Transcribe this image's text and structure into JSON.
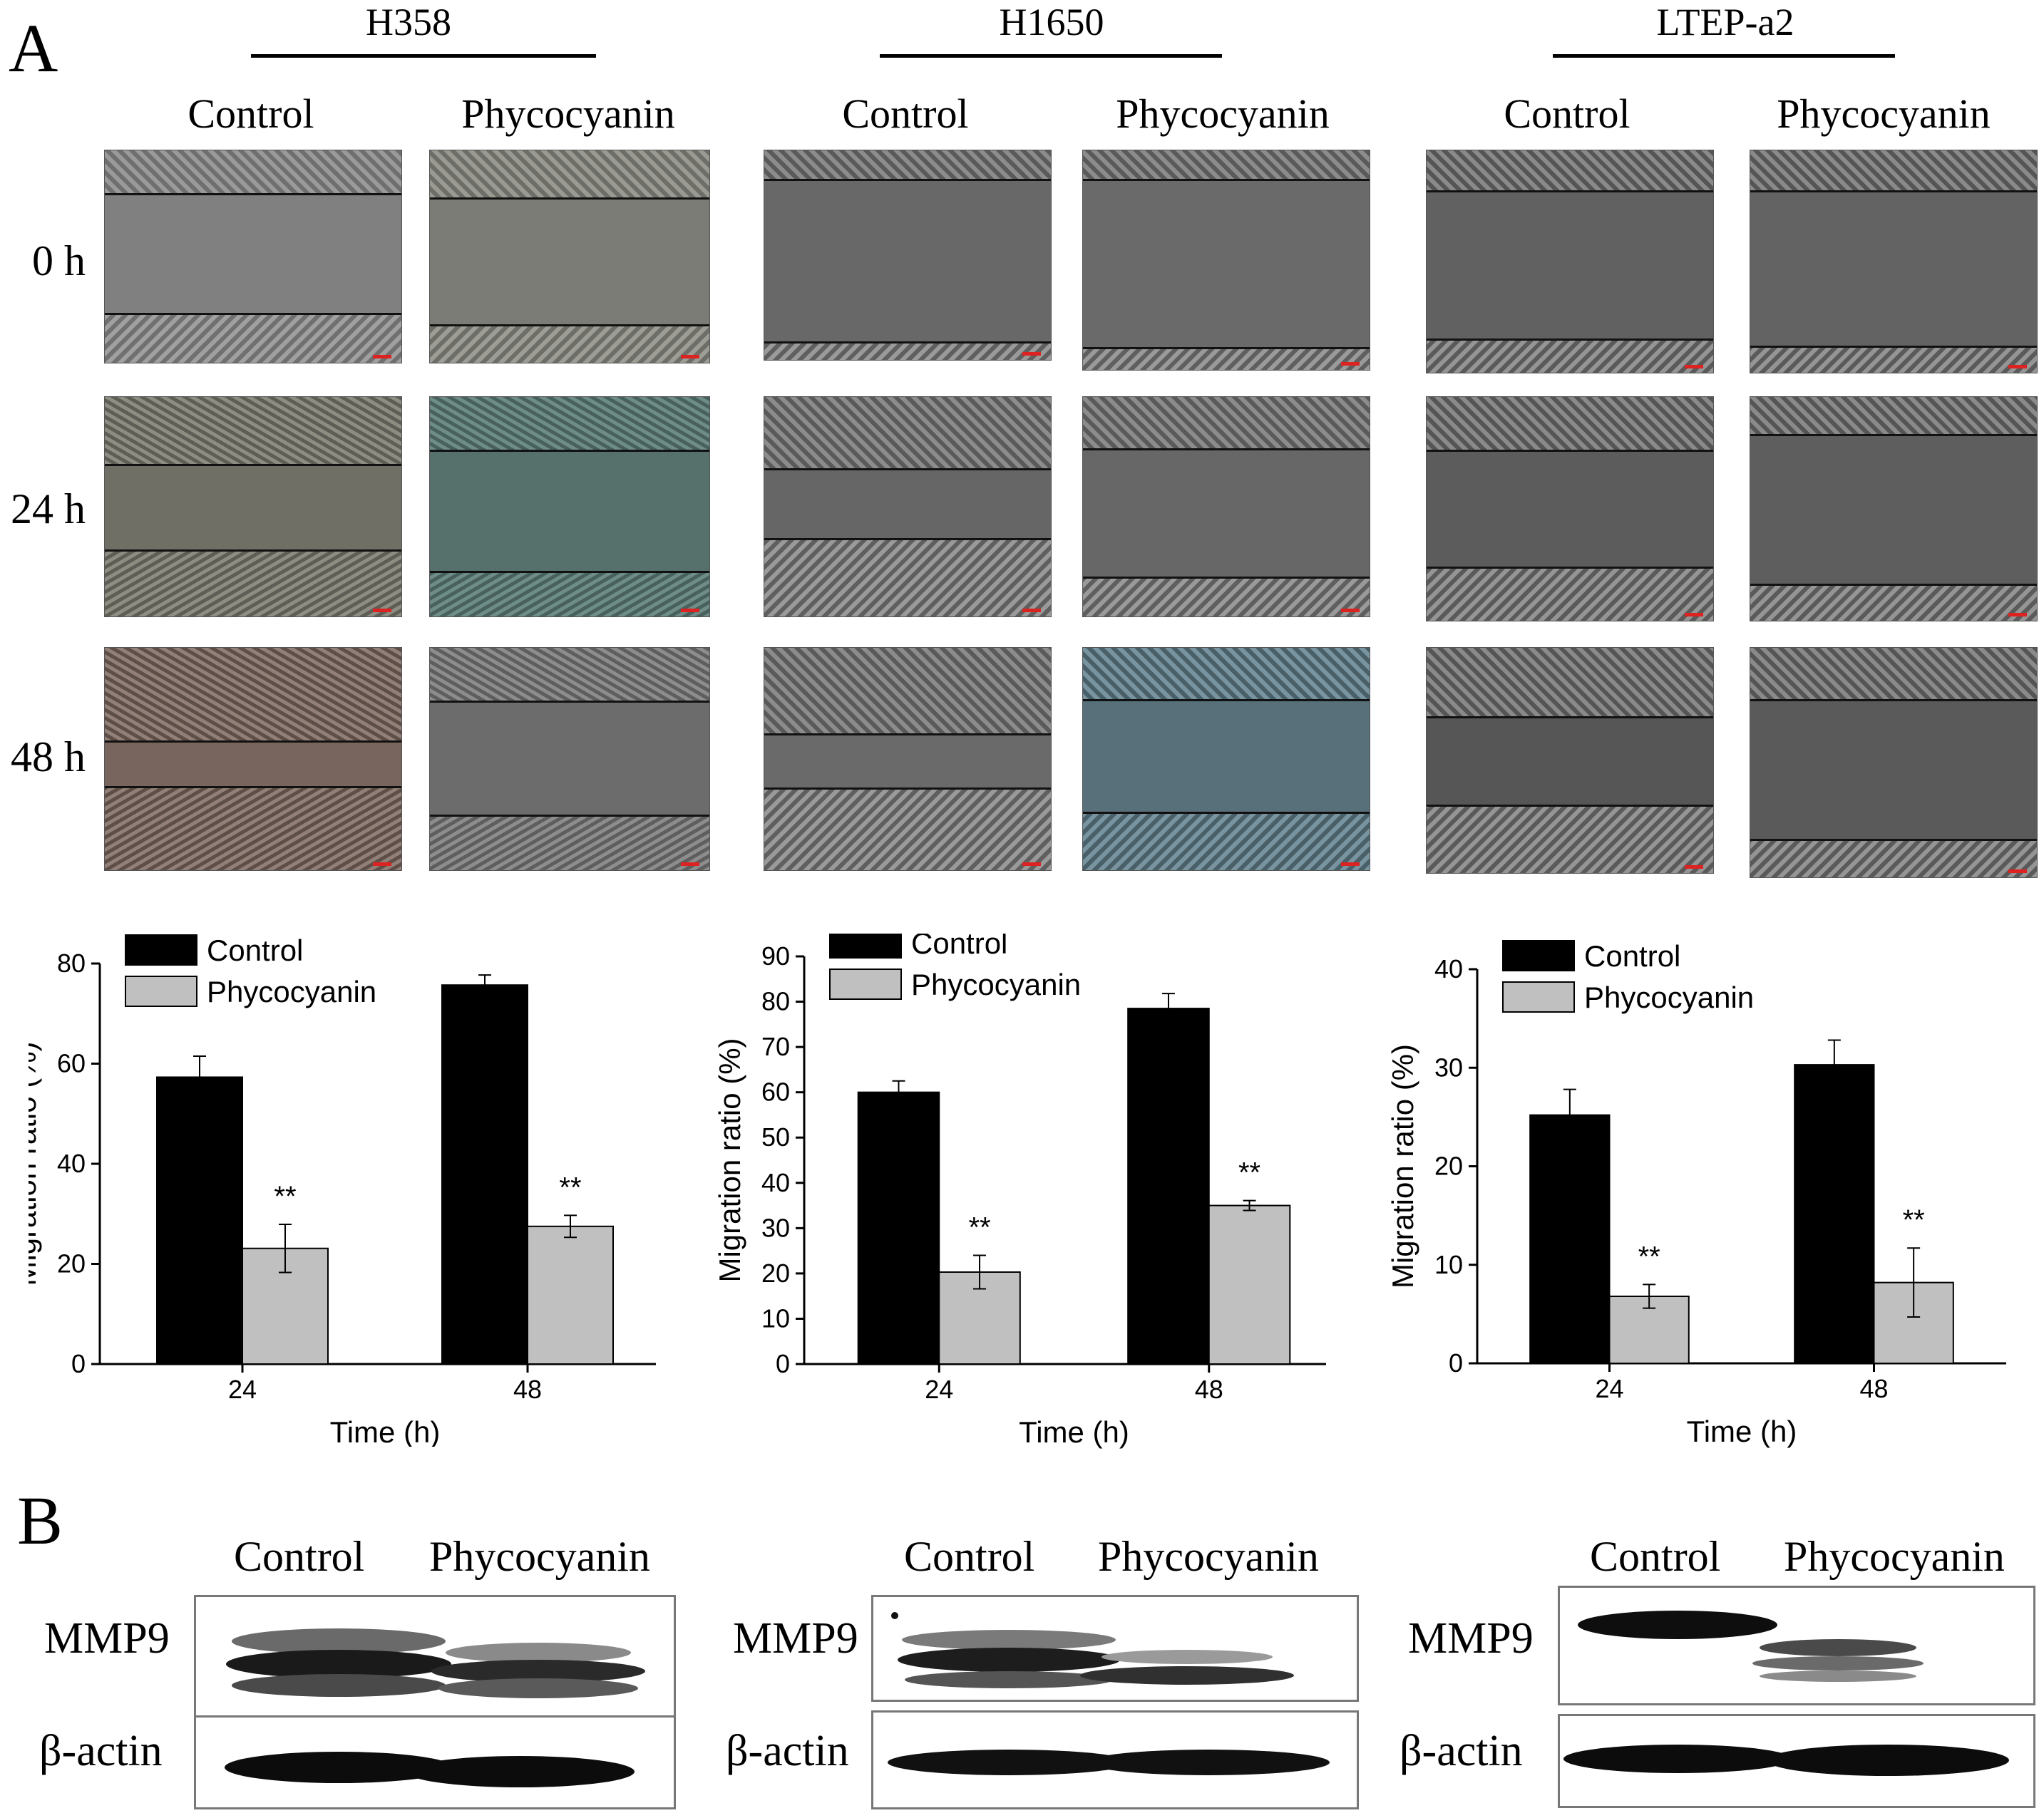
{
  "panels": {
    "a": "A",
    "b": "B"
  },
  "cell_lines": [
    "H358",
    "H1650",
    "LTEP-a2"
  ],
  "conditions": [
    "Control",
    "Phycocyanin"
  ],
  "timepoints": [
    "0 h",
    "24 h",
    "48 h"
  ],
  "colors": {
    "control": "#000000",
    "phycocyanin": "#c0c0c0"
  },
  "chart_data": [
    {
      "type": "bar",
      "title": "",
      "cell_line": "H358",
      "categories": [
        "24",
        "48"
      ],
      "series": [
        {
          "name": "Control",
          "values": [
            57.3,
            75.7
          ],
          "errors": [
            4.2,
            2.0
          ]
        },
        {
          "name": "Phycocyanin",
          "values": [
            23.1,
            27.5
          ],
          "errors": [
            4.8,
            2.2
          ]
        }
      ],
      "significance": [
        "**",
        "**"
      ],
      "xlabel": "Time (h)",
      "ylabel": "Migration ratio (%)",
      "ylim": [
        0,
        80
      ],
      "yticks": [
        "0",
        "20",
        "40",
        "60",
        "80"
      ],
      "legend": "top-left"
    },
    {
      "type": "bar",
      "title": "",
      "cell_line": "H1650",
      "categories": [
        "24",
        "48"
      ],
      "series": [
        {
          "name": "Control",
          "values": [
            60.0,
            78.5
          ],
          "errors": [
            2.5,
            3.3
          ]
        },
        {
          "name": "Phycocyanin",
          "values": [
            20.3,
            35.0
          ],
          "errors": [
            3.7,
            1.1
          ]
        }
      ],
      "significance": [
        "**",
        "**"
      ],
      "xlabel": "Time (h)",
      "ylabel": "Migration ratio (%)",
      "ylim": [
        0,
        90
      ],
      "yticks": [
        "0",
        "10",
        "20",
        "30",
        "40",
        "50",
        "60",
        "70",
        "80",
        "90"
      ],
      "legend": "top-left"
    },
    {
      "type": "bar",
      "title": "",
      "cell_line": "LTEP-a2",
      "categories": [
        "24",
        "48"
      ],
      "series": [
        {
          "name": "Control",
          "values": [
            25.2,
            30.3
          ],
          "errors": [
            2.6,
            2.5
          ]
        },
        {
          "name": "Phycocyanin",
          "values": [
            6.8,
            8.2
          ],
          "errors": [
            1.2,
            3.5
          ]
        }
      ],
      "significance": [
        "**",
        "**"
      ],
      "xlabel": "Time (h)",
      "ylabel": "Migration ratio (%)",
      "ylim": [
        0,
        40
      ],
      "yticks": [
        "0",
        "10",
        "20",
        "30",
        "40"
      ],
      "legend": "top-left"
    }
  ],
  "western": {
    "headers": [
      "Control",
      "Phycocyanin"
    ],
    "rows": [
      "MMP9",
      "β-actin"
    ]
  }
}
